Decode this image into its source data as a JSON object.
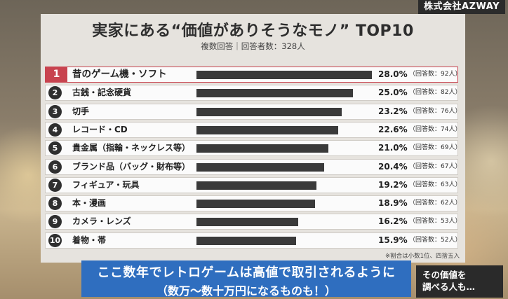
{
  "corner_badge": "株式会社AZWAY",
  "chart_data": {
    "type": "bar",
    "orientation": "horizontal",
    "title": "実家にある“価値がありそうなモノ” TOP10",
    "subtitle": "複数回答｜回答者数：328人",
    "rows": [
      {
        "rank": "1",
        "label": "昔のゲーム機・ソフト",
        "value": 28.0,
        "value_label": "28.0%",
        "count_label": "（回答数：92人）"
      },
      {
        "rank": "2",
        "label": "古銭・記念硬貨",
        "value": 25.0,
        "value_label": "25.0%",
        "count_label": "（回答数：82人）"
      },
      {
        "rank": "3",
        "label": "切手",
        "value": 23.2,
        "value_label": "23.2%",
        "count_label": "（回答数：76人）"
      },
      {
        "rank": "4",
        "label": "レコード・CD",
        "value": 22.6,
        "value_label": "22.6%",
        "count_label": "（回答数：74人）"
      },
      {
        "rank": "5",
        "label": "貴金属（指輪・ネックレス等）",
        "value": 21.0,
        "value_label": "21.0%",
        "count_label": "（回答数：69人）"
      },
      {
        "rank": "6",
        "label": "ブランド品（バッグ・財布等）",
        "value": 20.4,
        "value_label": "20.4%",
        "count_label": "（回答数：67人）"
      },
      {
        "rank": "7",
        "label": "フィギュア・玩具",
        "value": 19.2,
        "value_label": "19.2%",
        "count_label": "（回答数：63人）"
      },
      {
        "rank": "8",
        "label": "本・漫画",
        "value": 18.9,
        "value_label": "18.9%",
        "count_label": "（回答数：62人）"
      },
      {
        "rank": "9",
        "label": "カメラ・レンズ",
        "value": 16.2,
        "value_label": "16.2%",
        "count_label": "（回答数：53人）"
      },
      {
        "rank": "10",
        "label": "着物・帯",
        "value": 15.9,
        "value_label": "15.9%",
        "count_label": "（回答数：52人）"
      }
    ],
    "note": "※割合は小数1位、四捨五入",
    "colors": {
      "bar": "#3a3a3a",
      "rank1_accent": "#c8434f"
    }
  },
  "caption": {
    "line1": "ここ数年でレトロゲームは高値で取引されるように",
    "line2": "（数万～数十万円になるものも！）"
  },
  "side_box": {
    "line1": "その価値を",
    "line2": "調べる人も…"
  }
}
